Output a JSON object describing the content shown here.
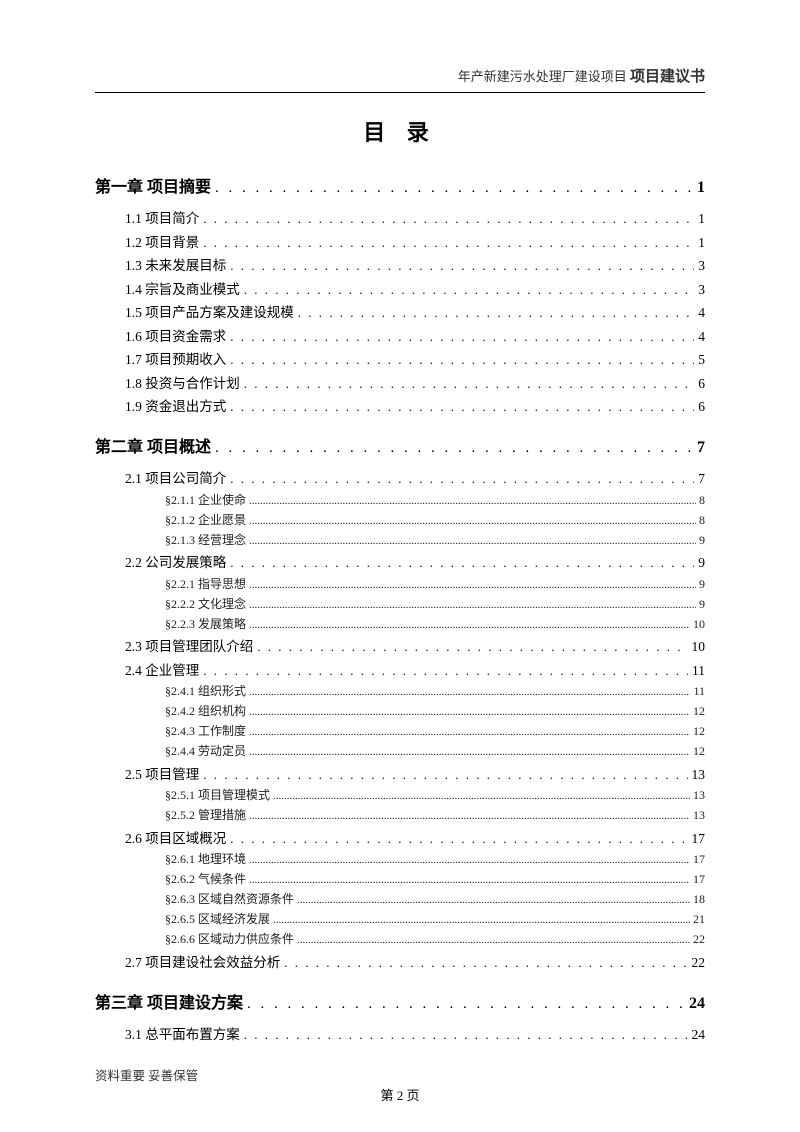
{
  "header": {
    "left": "年产新建污水处理厂建设项目",
    "right": "项目建议书"
  },
  "title": "目 录",
  "toc": [
    {
      "level": 1,
      "label": "第一章 项目摘要",
      "page": "1"
    },
    {
      "level": 2,
      "label": "1.1 项目简介",
      "page": "1"
    },
    {
      "level": 2,
      "label": "1.2 项目背景",
      "page": "1"
    },
    {
      "level": 2,
      "label": "1.3 未来发展目标",
      "page": "3"
    },
    {
      "level": 2,
      "label": "1.4 宗旨及商业模式",
      "page": "3"
    },
    {
      "level": 2,
      "label": "1.5 项目产品方案及建设规模",
      "page": "4"
    },
    {
      "level": 2,
      "label": "1.6 项目资金需求",
      "page": "4"
    },
    {
      "level": 2,
      "label": "1.7 项目预期收入",
      "page": "5"
    },
    {
      "level": 2,
      "label": "1.8 投资与合作计划",
      "page": "6"
    },
    {
      "level": 2,
      "label": "1.9 资金退出方式",
      "page": "6"
    },
    {
      "level": 1,
      "label": "第二章 项目概述",
      "page": "7"
    },
    {
      "level": 2,
      "label": "2.1 项目公司简介",
      "page": "7"
    },
    {
      "level": 3,
      "label": "§2.1.1 企业使命",
      "page": "8"
    },
    {
      "level": 3,
      "label": "§2.1.2 企业愿景",
      "page": "8"
    },
    {
      "level": 3,
      "label": "§2.1.3 经营理念",
      "page": "9"
    },
    {
      "level": 2,
      "label": "2.2 公司发展策略",
      "page": "9"
    },
    {
      "level": 3,
      "label": "§2.2.1 指导思想",
      "page": "9"
    },
    {
      "level": 3,
      "label": "§2.2.2 文化理念",
      "page": "9"
    },
    {
      "level": 3,
      "label": "§2.2.3 发展策略",
      "page": "10"
    },
    {
      "level": 2,
      "label": "2.3 项目管理团队介绍",
      "page": "10"
    },
    {
      "level": 2,
      "label": "2.4 企业管理",
      "page": "11"
    },
    {
      "level": 3,
      "label": "§2.4.1 组织形式",
      "page": "11"
    },
    {
      "level": 3,
      "label": "§2.4.2 组织机构",
      "page": "12"
    },
    {
      "level": 3,
      "label": "§2.4.3 工作制度",
      "page": "12"
    },
    {
      "level": 3,
      "label": "§2.4.4 劳动定员",
      "page": "12"
    },
    {
      "level": 2,
      "label": "2.5 项目管理",
      "page": "13"
    },
    {
      "level": 3,
      "label": "§2.5.1 项目管理模式",
      "page": "13"
    },
    {
      "level": 3,
      "label": "§2.5.2 管理措施",
      "page": "13"
    },
    {
      "level": 2,
      "label": "2.6 项目区域概况",
      "page": "17"
    },
    {
      "level": 3,
      "label": "§2.6.1 地理环境",
      "page": "17"
    },
    {
      "level": 3,
      "label": "§2.6.2 气候条件",
      "page": "17"
    },
    {
      "level": 3,
      "label": "§2.6.3 区域自然资源条件",
      "page": "18"
    },
    {
      "level": 3,
      "label": "§2.6.5 区域经济发展",
      "page": "21"
    },
    {
      "level": 3,
      "label": "§2.6.6 区域动力供应条件",
      "page": "22"
    },
    {
      "level": 2,
      "label": "2.7 项目建设社会效益分析",
      "page": "22"
    },
    {
      "level": 1,
      "label": "第三章 项目建设方案",
      "page": "24"
    },
    {
      "level": 2,
      "label": "3.1 总平面布置方案",
      "page": "24"
    }
  ],
  "footer": {
    "note": "资料重要  妥善保管",
    "page": "第 2 页"
  },
  "style": {
    "leader_char_chapter": ".",
    "leader_char_l2": ".",
    "leader_char_l3": ".",
    "background_color": "#ffffff",
    "text_color": "#000000"
  }
}
